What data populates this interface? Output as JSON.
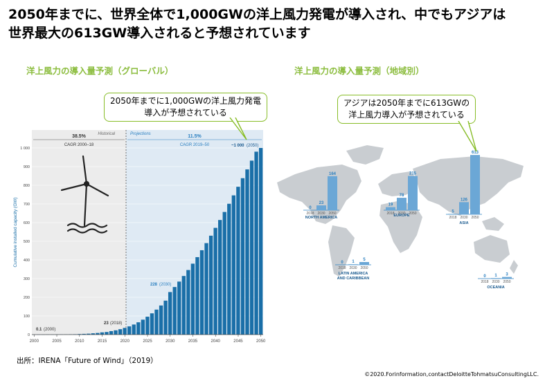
{
  "header": {
    "title_line1": "2050年までに、世界全体で1,000GWの洋上風力発電が導入され、中でもアジアは",
    "title_line2": "世界最大の613GW導入されると予想されています"
  },
  "left": {
    "subtitle": "洋上風力の導入量予測（グローバル）",
    "callout_line1": "2050年までに1,000GWの洋上風力発電",
    "callout_line2": "導入が予想されている"
  },
  "right": {
    "subtitle": "洋上風力の導入量予測（地域別）",
    "callout_line1": "アジアは2050年までに613GWの",
    "callout_line2": "洋上風力導入が予想されている"
  },
  "footer": {
    "source": "出所：IRENA「Future of Wind」（2019）",
    "copyright": "©2020.Forinformation,contactDeloitteTohmatsuConsultingLLC."
  },
  "colors": {
    "accent_green": "#86bc25",
    "subtitle_green": "#8cbd3f",
    "bar_blue": "#1a6fa8",
    "label_blue": "#2a7fc0",
    "map_gray": "#c9cdd1"
  },
  "chart_data": [
    {
      "type": "bar",
      "ylabel": "Cumulative installed capacity (GW)",
      "ylim": [
        0,
        1000
      ],
      "yticks": [
        0,
        100,
        200,
        300,
        400,
        500,
        600,
        700,
        800,
        900,
        1000
      ],
      "ytick_labels": [
        "0",
        "100",
        "200",
        "300",
        "400",
        "500",
        "600",
        "700",
        "800",
        "900",
        "1 000"
      ],
      "xticks": [
        "2000",
        "2005",
        "2010",
        "2015",
        "2020",
        "2025",
        "2030",
        "2035",
        "2040",
        "2045",
        "2050"
      ],
      "x": [
        2000,
        2001,
        2002,
        2003,
        2004,
        2005,
        2006,
        2007,
        2008,
        2009,
        2010,
        2011,
        2012,
        2013,
        2014,
        2015,
        2016,
        2017,
        2018,
        2019,
        2020,
        2021,
        2022,
        2023,
        2024,
        2025,
        2026,
        2027,
        2028,
        2029,
        2030,
        2031,
        2032,
        2033,
        2034,
        2035,
        2036,
        2037,
        2038,
        2039,
        2040,
        2041,
        2042,
        2043,
        2044,
        2045,
        2046,
        2047,
        2048,
        2049,
        2050
      ],
      "values": [
        0.1,
        0.2,
        0.3,
        0.5,
        0.6,
        0.7,
        0.9,
        1.1,
        1.5,
        2,
        3,
        4,
        5,
        7,
        8.8,
        12,
        14,
        18.8,
        23,
        29,
        36,
        44,
        54,
        66,
        80,
        96,
        114,
        134,
        156,
        182,
        228,
        255,
        284,
        314,
        346,
        380,
        415,
        452,
        490,
        530,
        572,
        614,
        657,
        701,
        746,
        792,
        838,
        885,
        932,
        980,
        1000
      ],
      "annotations": {
        "historical_label": "Historical",
        "projections_label": "Projections",
        "historical_cagr_value": "38.5%",
        "historical_cagr_label": "CAGR 2000–18",
        "projection_cagr_value": "11.5%",
        "projection_cagr_label": "CAGR 2019–50",
        "label_2000_value": "0.1",
        "label_2000_year": "(2000)",
        "label_2018_value": "23",
        "label_2018_year": "(2018)",
        "label_2030_value": "228",
        "label_2030_year": "(2030)",
        "label_2050_value": "~1 000",
        "label_2050_year": "(2050)"
      }
    },
    {
      "type": "bar",
      "regions": [
        {
          "name": "NORTH AMERICA",
          "years": [
            "2018",
            "2030",
            "2050"
          ],
          "values": [
            0,
            23,
            164
          ]
        },
        {
          "name": "EUROPE",
          "years": [
            "2018",
            "2030",
            "2050"
          ],
          "values": [
            19,
            78,
            215
          ]
        },
        {
          "name": "ASIA",
          "years": [
            "2018",
            "2030",
            "2050"
          ],
          "values": [
            5,
            126,
            613
          ]
        },
        {
          "name_line1": "LATIN AMERICA",
          "name_line2": "AND CARIBBEAN",
          "years": [
            "2018",
            "2030",
            "2050"
          ],
          "values": [
            0,
            1,
            5
          ]
        },
        {
          "name": "OCEANIA",
          "years": [
            "2018",
            "2030",
            "2050"
          ],
          "values": [
            0,
            1,
            3
          ]
        }
      ]
    }
  ]
}
